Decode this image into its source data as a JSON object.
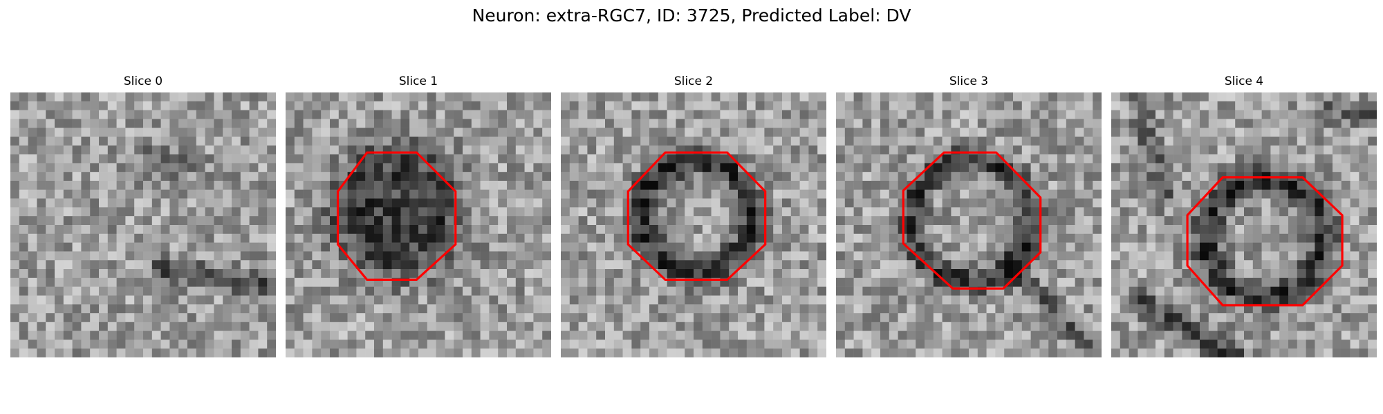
{
  "figure": {
    "title": "Neuron: extra-RGC7, ID: 3725, Predicted Label: DV",
    "outline_color": "#ff0000"
  },
  "panels": [
    {
      "title": "Slice 0",
      "roi_shown": false
    },
    {
      "title": "Slice 1",
      "roi_shown": true
    },
    {
      "title": "Slice 2",
      "roi_shown": true
    },
    {
      "title": "Slice 3",
      "roi_shown": true
    },
    {
      "title": "Slice 4",
      "roi_shown": true
    }
  ]
}
